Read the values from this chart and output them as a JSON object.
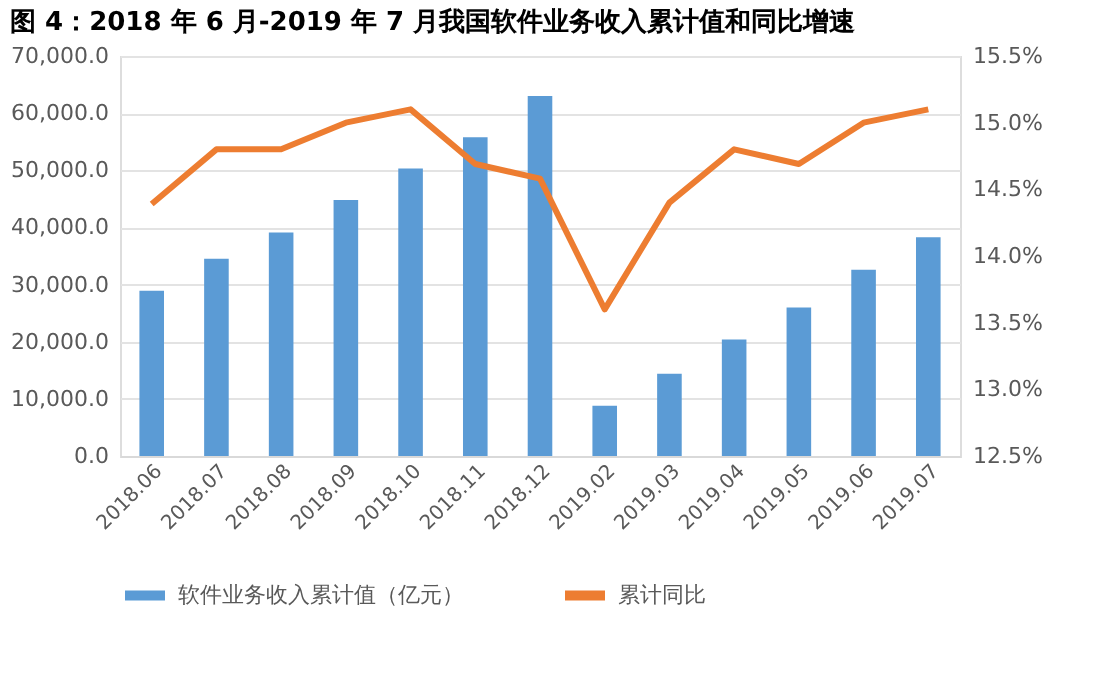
{
  "chart_data": {
    "type": "bar",
    "title": "图 4：2018 年 6 月-2019 年 7 月我国软件业务收入累计值和同比增速",
    "categories": [
      "2018.06",
      "2018.07",
      "2018.08",
      "2018.09",
      "2018.10",
      "2018.11",
      "2018.12",
      "2019.02",
      "2019.03",
      "2019.04",
      "2019.05",
      "2019.06",
      "2019.07"
    ],
    "series": [
      {
        "name": "软件业务收入累计值（亿元）",
        "color": "#5b9bd5",
        "values": [
          28900,
          34500,
          39100,
          44800,
          50300,
          55800,
          63000,
          8800,
          14400,
          20400,
          26000,
          32600,
          38300
        ]
      },
      {
        "name": "累计同比",
        "type": "line",
        "axis": "y2",
        "color": "#ed7d31",
        "values": [
          14.39,
          14.8,
          14.8,
          15.0,
          15.1,
          14.69,
          14.58,
          13.6,
          14.4,
          14.8,
          14.69,
          15.0,
          15.1
        ]
      }
    ],
    "ylim": [
      0,
      70000
    ],
    "yticks": [
      {
        "value": 0,
        "label": "0.0"
      },
      {
        "value": 10000,
        "label": "10,000.0"
      },
      {
        "value": 20000,
        "label": "20,000.0"
      },
      {
        "value": 30000,
        "label": "30,000.0"
      },
      {
        "value": 40000,
        "label": "40,000.0"
      },
      {
        "value": 50000,
        "label": "50,000.0"
      },
      {
        "value": 60000,
        "label": "60,000.0"
      },
      {
        "value": 70000,
        "label": "70,000.0"
      }
    ],
    "y2lim": [
      12.5,
      15.5
    ],
    "y2ticks": [
      {
        "value": 12.5,
        "label": "12.5%"
      },
      {
        "value": 13.0,
        "label": "13.0%"
      },
      {
        "value": 13.5,
        "label": "13.5%"
      },
      {
        "value": 14.0,
        "label": "14.0%"
      },
      {
        "value": 14.5,
        "label": "14.5%"
      },
      {
        "value": 15.0,
        "label": "15.0%"
      },
      {
        "value": 15.5,
        "label": "15.5%"
      }
    ],
    "grid": "y",
    "legend": "bottom",
    "marker": "none",
    "line_style": "solid"
  }
}
